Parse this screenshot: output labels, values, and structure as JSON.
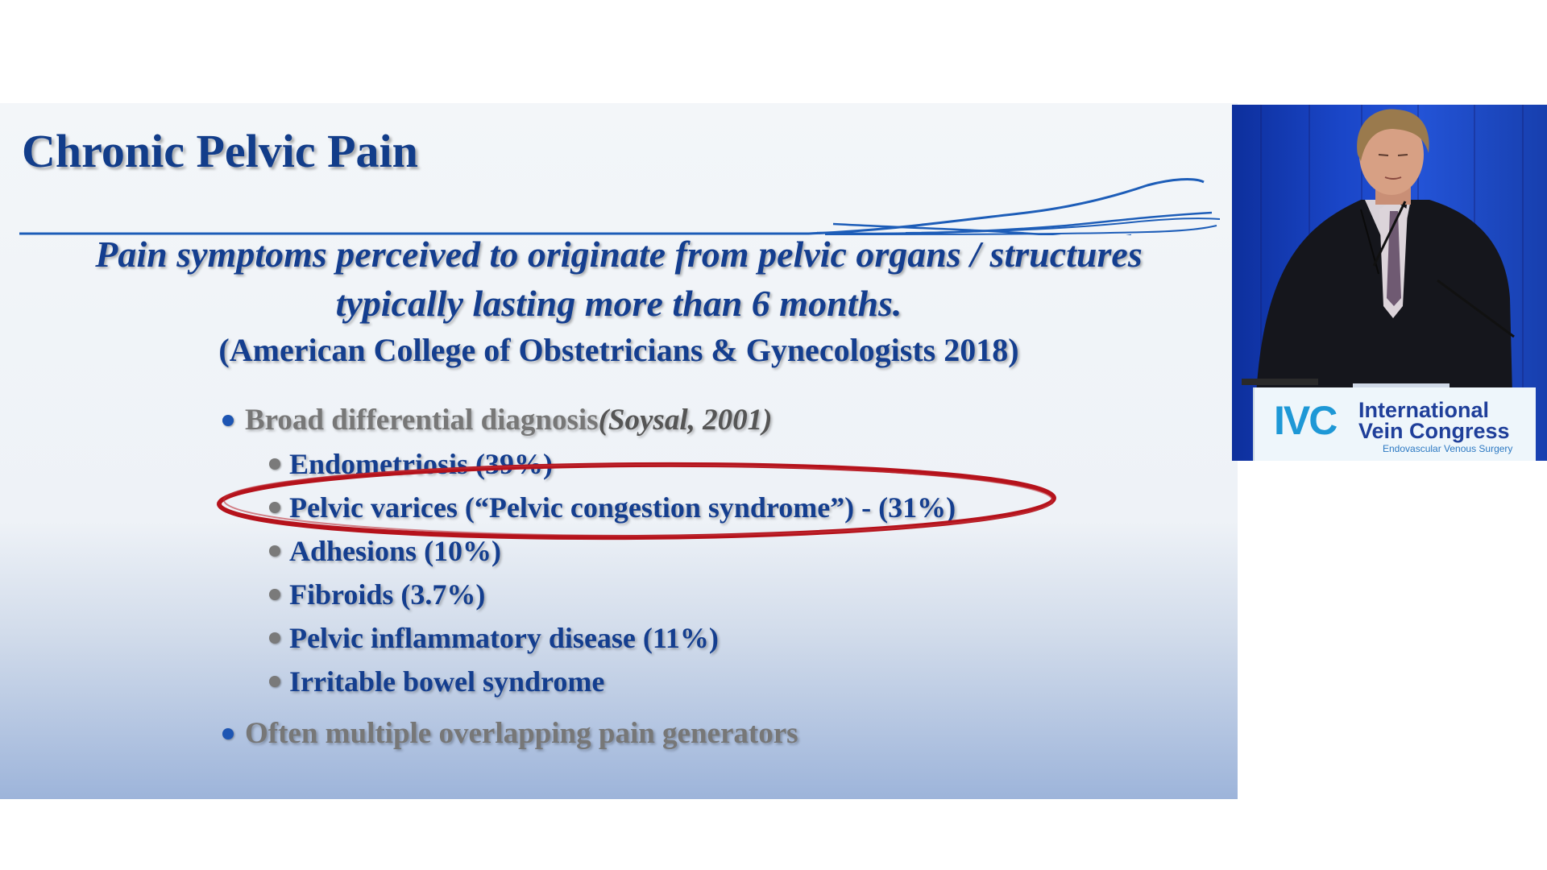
{
  "slide": {
    "title": "Chronic Pelvic Pain",
    "definition_line1": "Pain symptoms perceived to originate from pelvic organs / structures",
    "definition_line2": "typically lasting more than 6 months.",
    "citation": "(American College of Obstetricians & Gynecologists 2018)",
    "bullet1_text": "Broad differential diagnosis ",
    "bullet1_ref": "(Soysal, 2001)",
    "sub_bullets": [
      "Endometriosis (39%)",
      "Pelvic varices (“Pelvic congestion syndrome”) - (31%)",
      "Adhesions (10%)",
      "Fibroids (3.7%)",
      "Pelvic inflammatory disease (11%)",
      "Irritable bowel syndrome"
    ],
    "bullet2_text": "Often multiple overlapping pain generators",
    "highlighted_item": "Pelvic varices",
    "colors": {
      "title": "#123d8a",
      "level1_text": "#777777",
      "level2_text": "#143e8f",
      "highlight_ellipse": "#b5121b"
    }
  },
  "speaker_video": {
    "sign_line1": "International",
    "sign_line2": "Vein Congress",
    "sign_line3": "Endovascular Venous Surgery",
    "logo_text": "IVC",
    "colors": {
      "backdrop": "#1a46c8",
      "logo": "#1e98d6",
      "sign_text": "#1f3f9a"
    }
  }
}
